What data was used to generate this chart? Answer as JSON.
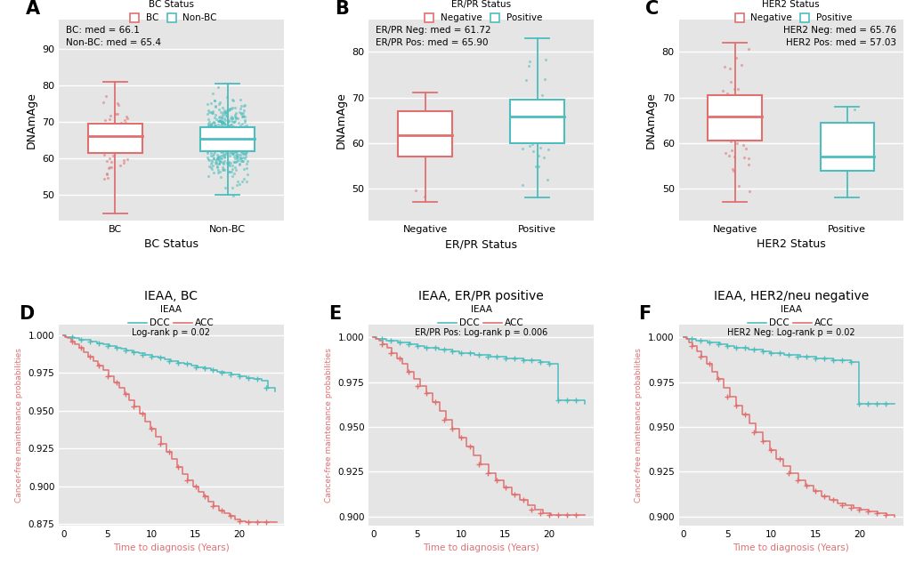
{
  "bg_color": "#e5e5e5",
  "salmon": "#E07070",
  "teal": "#4DBDBD",
  "panel_labels": [
    "A",
    "B",
    "C",
    "D",
    "E",
    "F"
  ],
  "panel_titles": [
    "DNAmAge, BC",
    "DNAmAge, ER/PR Status",
    "DNAmAge, HER2/neu Status",
    "IEAA, BC",
    "IEAA, ER/PR positive",
    "IEAA, HER2/neu negative"
  ],
  "boxplot_A": {
    "xlabel": "BC Status",
    "ylabel": "DNAmAge",
    "legend_title": "BC Status",
    "legend_labels": [
      "BC",
      "Non-BC"
    ],
    "categories": [
      "BC",
      "Non-BC"
    ],
    "annotation": "BC: med = 66.1\nNon-BC: med = 65.4",
    "annotation_loc": "upper left",
    "BC": {
      "median": 66.1,
      "q1": 61.5,
      "q3": 69.5,
      "whisker_low": 45.0,
      "whisker_high": 81.0,
      "jitter_n": 65,
      "jitter_seed": 42,
      "jitter_spread": 0.12
    },
    "NonBC": {
      "median": 65.4,
      "q1": 62.0,
      "q3": 68.5,
      "whisker_low": 50.0,
      "whisker_high": 80.5,
      "jitter_n": 550,
      "jitter_seed": 123,
      "jitter_spread": 0.18
    },
    "ylim": [
      43,
      98
    ],
    "yticks": [
      50,
      60,
      70,
      80,
      90
    ]
  },
  "boxplot_B": {
    "xlabel": "ER/PR Status",
    "ylabel": "DNAmAge",
    "legend_title": "ER/PR Status",
    "legend_labels": [
      "Negative",
      "Positive"
    ],
    "categories": [
      "Negative",
      "Positive"
    ],
    "annotation": "ER/PR Neg: med = 61.72\nER/PR Pos: med = 65.90",
    "annotation_loc": "upper left",
    "Negative": {
      "median": 61.72,
      "q1": 57.0,
      "q3": 67.0,
      "whisker_low": 47.0,
      "whisker_high": 71.0,
      "jitter_n": 8,
      "jitter_seed": 55,
      "jitter_spread": 0.1
    },
    "Positive": {
      "median": 65.9,
      "q1": 60.0,
      "q3": 69.5,
      "whisker_low": 48.0,
      "whisker_high": 83.0,
      "jitter_n": 40,
      "jitter_seed": 77,
      "jitter_spread": 0.15
    },
    "ylim": [
      43,
      87
    ],
    "yticks": [
      50,
      60,
      70,
      80
    ]
  },
  "boxplot_C": {
    "xlabel": "HER2 Status",
    "ylabel": "DNAmAge",
    "legend_title": "HER2 Status",
    "legend_labels": [
      "Negative",
      "Positive"
    ],
    "categories": [
      "Negative",
      "Positive"
    ],
    "annotation": "HER2 Neg: med = 65.76\nHER2 Pos: med = 57.03",
    "annotation_loc": "upper right",
    "Negative": {
      "median": 65.76,
      "q1": 60.5,
      "q3": 70.5,
      "whisker_low": 47.0,
      "whisker_high": 82.0,
      "jitter_n": 50,
      "jitter_seed": 33,
      "jitter_spread": 0.13
    },
    "Positive": {
      "median": 57.03,
      "q1": 54.0,
      "q3": 64.5,
      "whisker_low": 48.0,
      "whisker_high": 68.0,
      "jitter_n": 10,
      "jitter_seed": 99,
      "jitter_spread": 0.1
    },
    "ylim": [
      43,
      87
    ],
    "yticks": [
      50,
      60,
      70,
      80
    ]
  },
  "km_D": {
    "xlabel": "Time to diagnosis (Years)",
    "ylabel": "Cancer-free maintenance probabilities",
    "log_rank_p": "Log-rank p = 0.02",
    "legend_title": "IEAA",
    "ylim": [
      0.874,
      1.007
    ],
    "xlim": [
      -0.5,
      25
    ],
    "yticks": [
      0.875,
      0.9,
      0.925,
      0.95,
      0.975,
      1.0
    ],
    "xticks": [
      0,
      5,
      10,
      15,
      20
    ],
    "DCC_times": [
      0,
      0.3,
      0.8,
      1.2,
      1.8,
      2.5,
      3.1,
      3.8,
      4.5,
      5.2,
      5.9,
      6.5,
      7.2,
      7.9,
      8.6,
      9.3,
      10.1,
      10.8,
      11.5,
      12.2,
      13.0,
      13.7,
      14.5,
      15.2,
      16.0,
      16.8,
      17.5,
      18.3,
      19.1,
      20.0,
      20.8,
      21.6,
      22.5,
      23.2,
      24.0
    ],
    "DCC_surv": [
      1.0,
      0.999,
      0.999,
      0.998,
      0.997,
      0.997,
      0.996,
      0.995,
      0.994,
      0.993,
      0.992,
      0.991,
      0.99,
      0.989,
      0.988,
      0.987,
      0.986,
      0.985,
      0.984,
      0.983,
      0.982,
      0.981,
      0.98,
      0.979,
      0.978,
      0.977,
      0.976,
      0.975,
      0.974,
      0.973,
      0.972,
      0.971,
      0.97,
      0.965,
      0.963
    ],
    "DCC_censor_times": [
      1,
      2,
      3,
      4,
      5,
      6,
      7,
      8,
      9,
      10,
      11,
      12,
      13,
      14,
      15,
      16,
      17,
      18,
      19,
      20,
      21,
      22,
      23
    ],
    "ACC_times": [
      0,
      0.2,
      0.5,
      0.9,
      1.3,
      1.8,
      2.3,
      2.8,
      3.4,
      3.9,
      4.5,
      5.1,
      5.7,
      6.3,
      6.9,
      7.5,
      8.1,
      8.7,
      9.3,
      9.9,
      10.5,
      11.1,
      11.7,
      12.3,
      12.9,
      13.5,
      14.1,
      14.7,
      15.3,
      15.9,
      16.5,
      17.1,
      17.7,
      18.3,
      18.9,
      19.5,
      20.1,
      20.7,
      21.3,
      22.0,
      22.8,
      23.5,
      24.2
    ],
    "ACC_surv": [
      1.0,
      0.999,
      0.998,
      0.996,
      0.994,
      0.992,
      0.989,
      0.986,
      0.983,
      0.98,
      0.977,
      0.973,
      0.969,
      0.965,
      0.961,
      0.957,
      0.953,
      0.948,
      0.943,
      0.938,
      0.933,
      0.928,
      0.923,
      0.918,
      0.913,
      0.908,
      0.904,
      0.9,
      0.896,
      0.893,
      0.89,
      0.887,
      0.884,
      0.882,
      0.88,
      0.878,
      0.877,
      0.876,
      0.876,
      0.876,
      0.876,
      0.876,
      0.876
    ],
    "ACC_censor_times": [
      1,
      2,
      3,
      4,
      5,
      6,
      7,
      8,
      9,
      10,
      11,
      12,
      13,
      14,
      15,
      16,
      17,
      18,
      19,
      20,
      21,
      22,
      23
    ]
  },
  "km_E": {
    "xlabel": "Time to diagnosis (Years)",
    "ylabel": "Cancer-free maintenance probabilities",
    "log_rank_p": "ER/PR Pos: Log-rank p = 0.006",
    "legend_title": "IEAA",
    "ylim": [
      0.895,
      1.007
    ],
    "xlim": [
      -0.5,
      25
    ],
    "yticks": [
      0.9,
      0.925,
      0.95,
      0.975,
      1.0
    ],
    "xticks": [
      0,
      5,
      10,
      15,
      20
    ],
    "DCC_times": [
      0,
      0.4,
      0.9,
      1.5,
      2.1,
      2.8,
      3.5,
      4.2,
      5.0,
      5.8,
      6.6,
      7.4,
      8.2,
      9.0,
      9.8,
      10.7,
      11.5,
      12.4,
      13.3,
      14.2,
      15.1,
      16.0,
      17.0,
      18.0,
      19.0,
      20.0,
      21.0,
      22.0,
      23.0,
      24.0
    ],
    "DCC_surv": [
      1.0,
      0.999,
      0.999,
      0.998,
      0.998,
      0.997,
      0.997,
      0.996,
      0.995,
      0.994,
      0.994,
      0.993,
      0.993,
      0.992,
      0.991,
      0.991,
      0.99,
      0.99,
      0.989,
      0.989,
      0.988,
      0.988,
      0.987,
      0.987,
      0.986,
      0.985,
      0.965,
      0.965,
      0.965,
      0.963
    ],
    "DCC_censor_times": [
      1,
      2,
      3,
      4,
      5,
      6,
      7,
      8,
      9,
      10,
      11,
      12,
      13,
      14,
      15,
      16,
      17,
      18,
      19,
      20,
      21,
      22,
      23
    ],
    "ACC_times": [
      0,
      0.3,
      0.7,
      1.1,
      1.6,
      2.1,
      2.7,
      3.3,
      3.9,
      4.6,
      5.3,
      6.0,
      6.7,
      7.5,
      8.2,
      9.0,
      9.8,
      10.6,
      11.4,
      12.2,
      13.1,
      13.9,
      14.8,
      15.7,
      16.6,
      17.5,
      18.4,
      19.3,
      20.2,
      21.1,
      22.1,
      23.1,
      24.0
    ],
    "ACC_surv": [
      1.0,
      0.999,
      0.998,
      0.996,
      0.994,
      0.991,
      0.988,
      0.985,
      0.981,
      0.977,
      0.973,
      0.969,
      0.964,
      0.959,
      0.954,
      0.949,
      0.944,
      0.939,
      0.934,
      0.929,
      0.924,
      0.92,
      0.916,
      0.912,
      0.909,
      0.906,
      0.904,
      0.902,
      0.901,
      0.901,
      0.901,
      0.901,
      0.901
    ],
    "ACC_censor_times": [
      1,
      2,
      3,
      4,
      5,
      6,
      7,
      8,
      9,
      10,
      11,
      12,
      13,
      14,
      15,
      16,
      17,
      18,
      19,
      20,
      21,
      22,
      23
    ]
  },
  "km_F": {
    "xlabel": "Time to diagnosis (Years)",
    "ylabel": "Cancer-free maintenance probabilities",
    "log_rank_p": "HER2 Neg: Log-rank p = 0.02",
    "legend_title": "IEAA",
    "ylim": [
      0.895,
      1.007
    ],
    "xlim": [
      -0.5,
      25
    ],
    "yticks": [
      0.9,
      0.925,
      0.95,
      0.975,
      1.0
    ],
    "xticks": [
      0,
      5,
      10,
      15,
      20
    ],
    "DCC_times": [
      0,
      0.4,
      0.9,
      1.5,
      2.1,
      2.8,
      3.5,
      4.2,
      5.0,
      5.8,
      6.6,
      7.4,
      8.2,
      9.0,
      9.8,
      10.7,
      11.5,
      12.4,
      13.3,
      14.2,
      15.1,
      16.0,
      17.0,
      18.0,
      19.0,
      20.0,
      21.0,
      22.0,
      23.0,
      24.0
    ],
    "DCC_surv": [
      1.0,
      0.999,
      0.999,
      0.998,
      0.998,
      0.997,
      0.997,
      0.996,
      0.995,
      0.994,
      0.994,
      0.993,
      0.993,
      0.992,
      0.991,
      0.991,
      0.99,
      0.99,
      0.989,
      0.989,
      0.988,
      0.988,
      0.987,
      0.987,
      0.986,
      0.963,
      0.963,
      0.963,
      0.963,
      0.963
    ],
    "DCC_censor_times": [
      1,
      2,
      3,
      4,
      5,
      6,
      7,
      8,
      9,
      10,
      11,
      12,
      13,
      14,
      15,
      16,
      17,
      18,
      19,
      20,
      21,
      22,
      23
    ],
    "ACC_times": [
      0,
      0.3,
      0.7,
      1.1,
      1.6,
      2.1,
      2.7,
      3.3,
      3.9,
      4.6,
      5.3,
      6.0,
      6.7,
      7.5,
      8.2,
      9.0,
      9.8,
      10.6,
      11.4,
      12.2,
      13.1,
      13.9,
      14.8,
      15.7,
      16.6,
      17.5,
      18.4,
      19.3,
      20.2,
      21.1,
      22.1,
      23.1,
      24.0
    ],
    "ACC_surv": [
      1.0,
      0.999,
      0.997,
      0.995,
      0.992,
      0.989,
      0.985,
      0.981,
      0.977,
      0.972,
      0.967,
      0.962,
      0.957,
      0.952,
      0.947,
      0.942,
      0.937,
      0.932,
      0.928,
      0.924,
      0.92,
      0.917,
      0.914,
      0.911,
      0.909,
      0.907,
      0.906,
      0.905,
      0.904,
      0.903,
      0.902,
      0.901,
      0.9
    ],
    "ACC_censor_times": [
      1,
      2,
      3,
      4,
      5,
      6,
      7,
      8,
      9,
      10,
      11,
      12,
      13,
      14,
      15,
      16,
      17,
      18,
      19,
      20,
      21,
      22,
      23
    ]
  }
}
